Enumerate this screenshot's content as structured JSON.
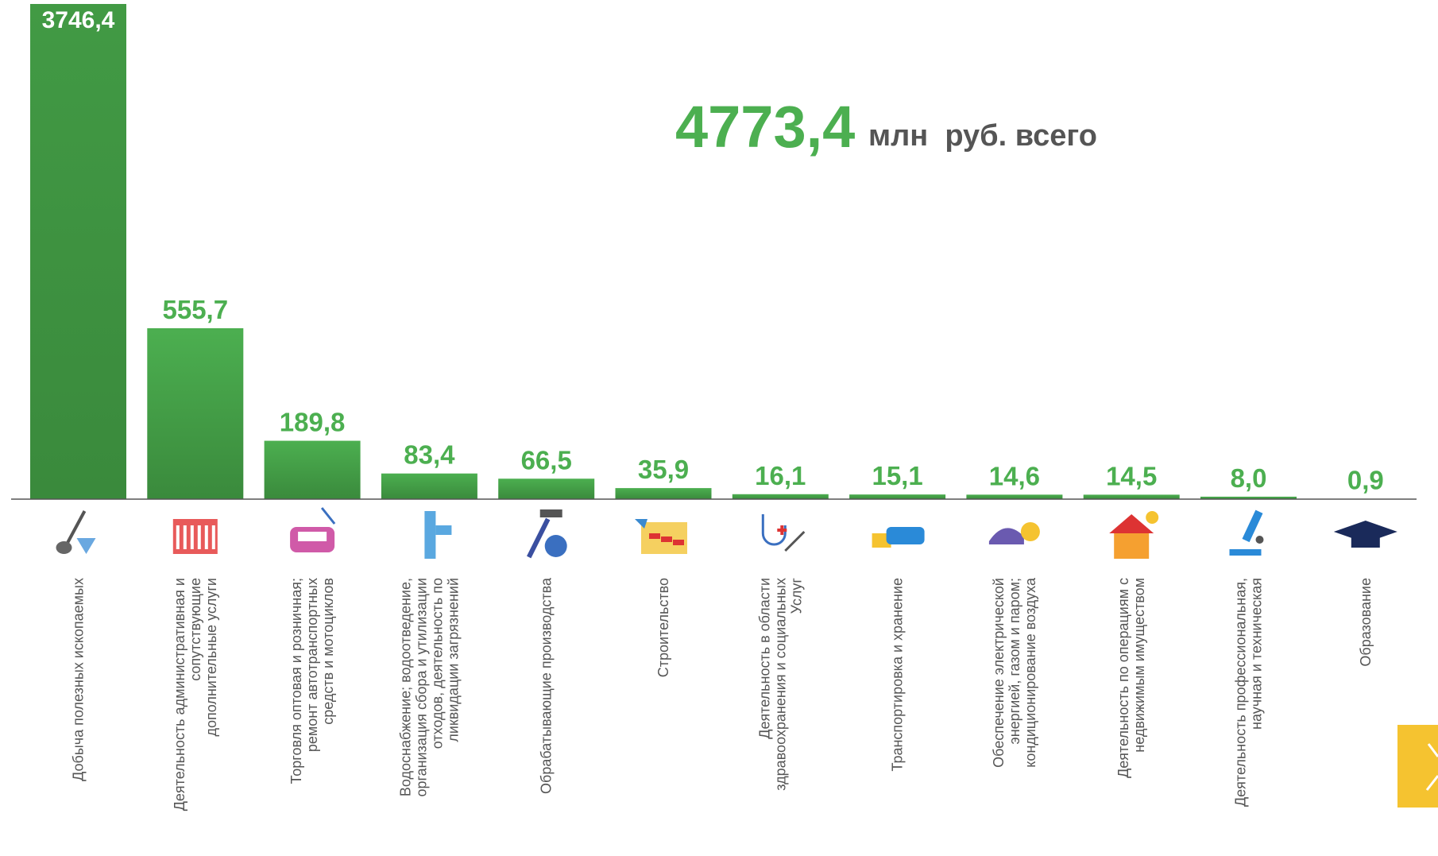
{
  "chart_data": {
    "type": "bar",
    "total": "4773,4",
    "total_unit": "млн  руб. всего",
    "categories": [
      "Добыча полезных ископаемых",
      "Деятельность административная и\nсопутствующие\nдополнительные услуги",
      "Торговля оптовая и розничная;\nремонт автотранспортных\nсредств и мотоциклов",
      "Водоснабжение; водоотведение,\nорганизация сбора и утилизации\nотходов, деятельность по\nликвидации загрязнений",
      "Обрабатывающие производства",
      "Строительство",
      "Деятельность в области\nздравоохранения и социальных\nУслуг",
      "Транспортировка и хранение",
      "Обеспечение электрической\nэнергией, газом и паром;\nкондиционирование воздуха",
      "Деятельность по операциям с\nнедвижимым имуществом",
      "Деятельность  профессиональная,\nнаучная и техническая",
      "Образование"
    ],
    "values": [
      3746.4,
      555.7,
      189.8,
      83.4,
      66.5,
      35.9,
      16.1,
      15.1,
      14.6,
      14.5,
      8.0,
      0.9
    ],
    "value_labels": [
      "3746,4",
      "555,7",
      "189,8",
      "83,4",
      "66,5",
      "35,9",
      "16,1",
      "15,1",
      "14,6",
      "14,5",
      "8,0",
      "0,9"
    ],
    "color": "#4caf50",
    "ylim": [
      0,
      1610
    ]
  }
}
